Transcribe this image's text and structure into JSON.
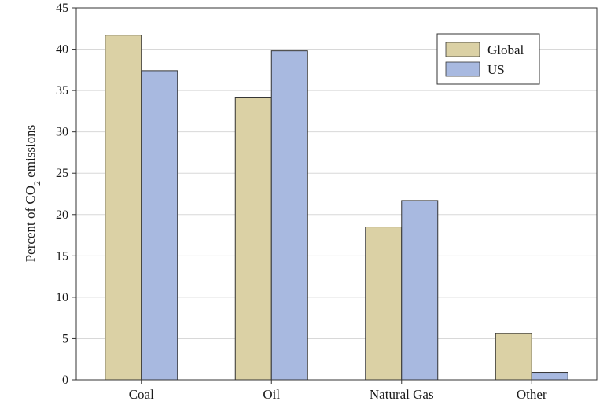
{
  "chart_data": {
    "type": "bar",
    "categories": [
      "Coal",
      "Oil",
      "Natural Gas",
      "Other"
    ],
    "series": [
      {
        "name": "Global",
        "values": [
          41.7,
          34.2,
          18.5,
          5.6
        ],
        "color": "#dbd1a5"
      },
      {
        "name": "US",
        "values": [
          37.4,
          39.8,
          21.7,
          0.9
        ],
        "color": "#a8b9e0"
      }
    ],
    "ylabel_main": "Percent of CO",
    "ylabel_subscript": "2",
    "ylabel_tail": " emissions",
    "xlabel": "",
    "title": "",
    "ylim": [
      0,
      45
    ],
    "yticks": [
      "0",
      "5",
      "10",
      "15",
      "20",
      "25",
      "30",
      "35",
      "40",
      "45"
    ],
    "grid": "horizontal",
    "legend_position": "top-right"
  }
}
